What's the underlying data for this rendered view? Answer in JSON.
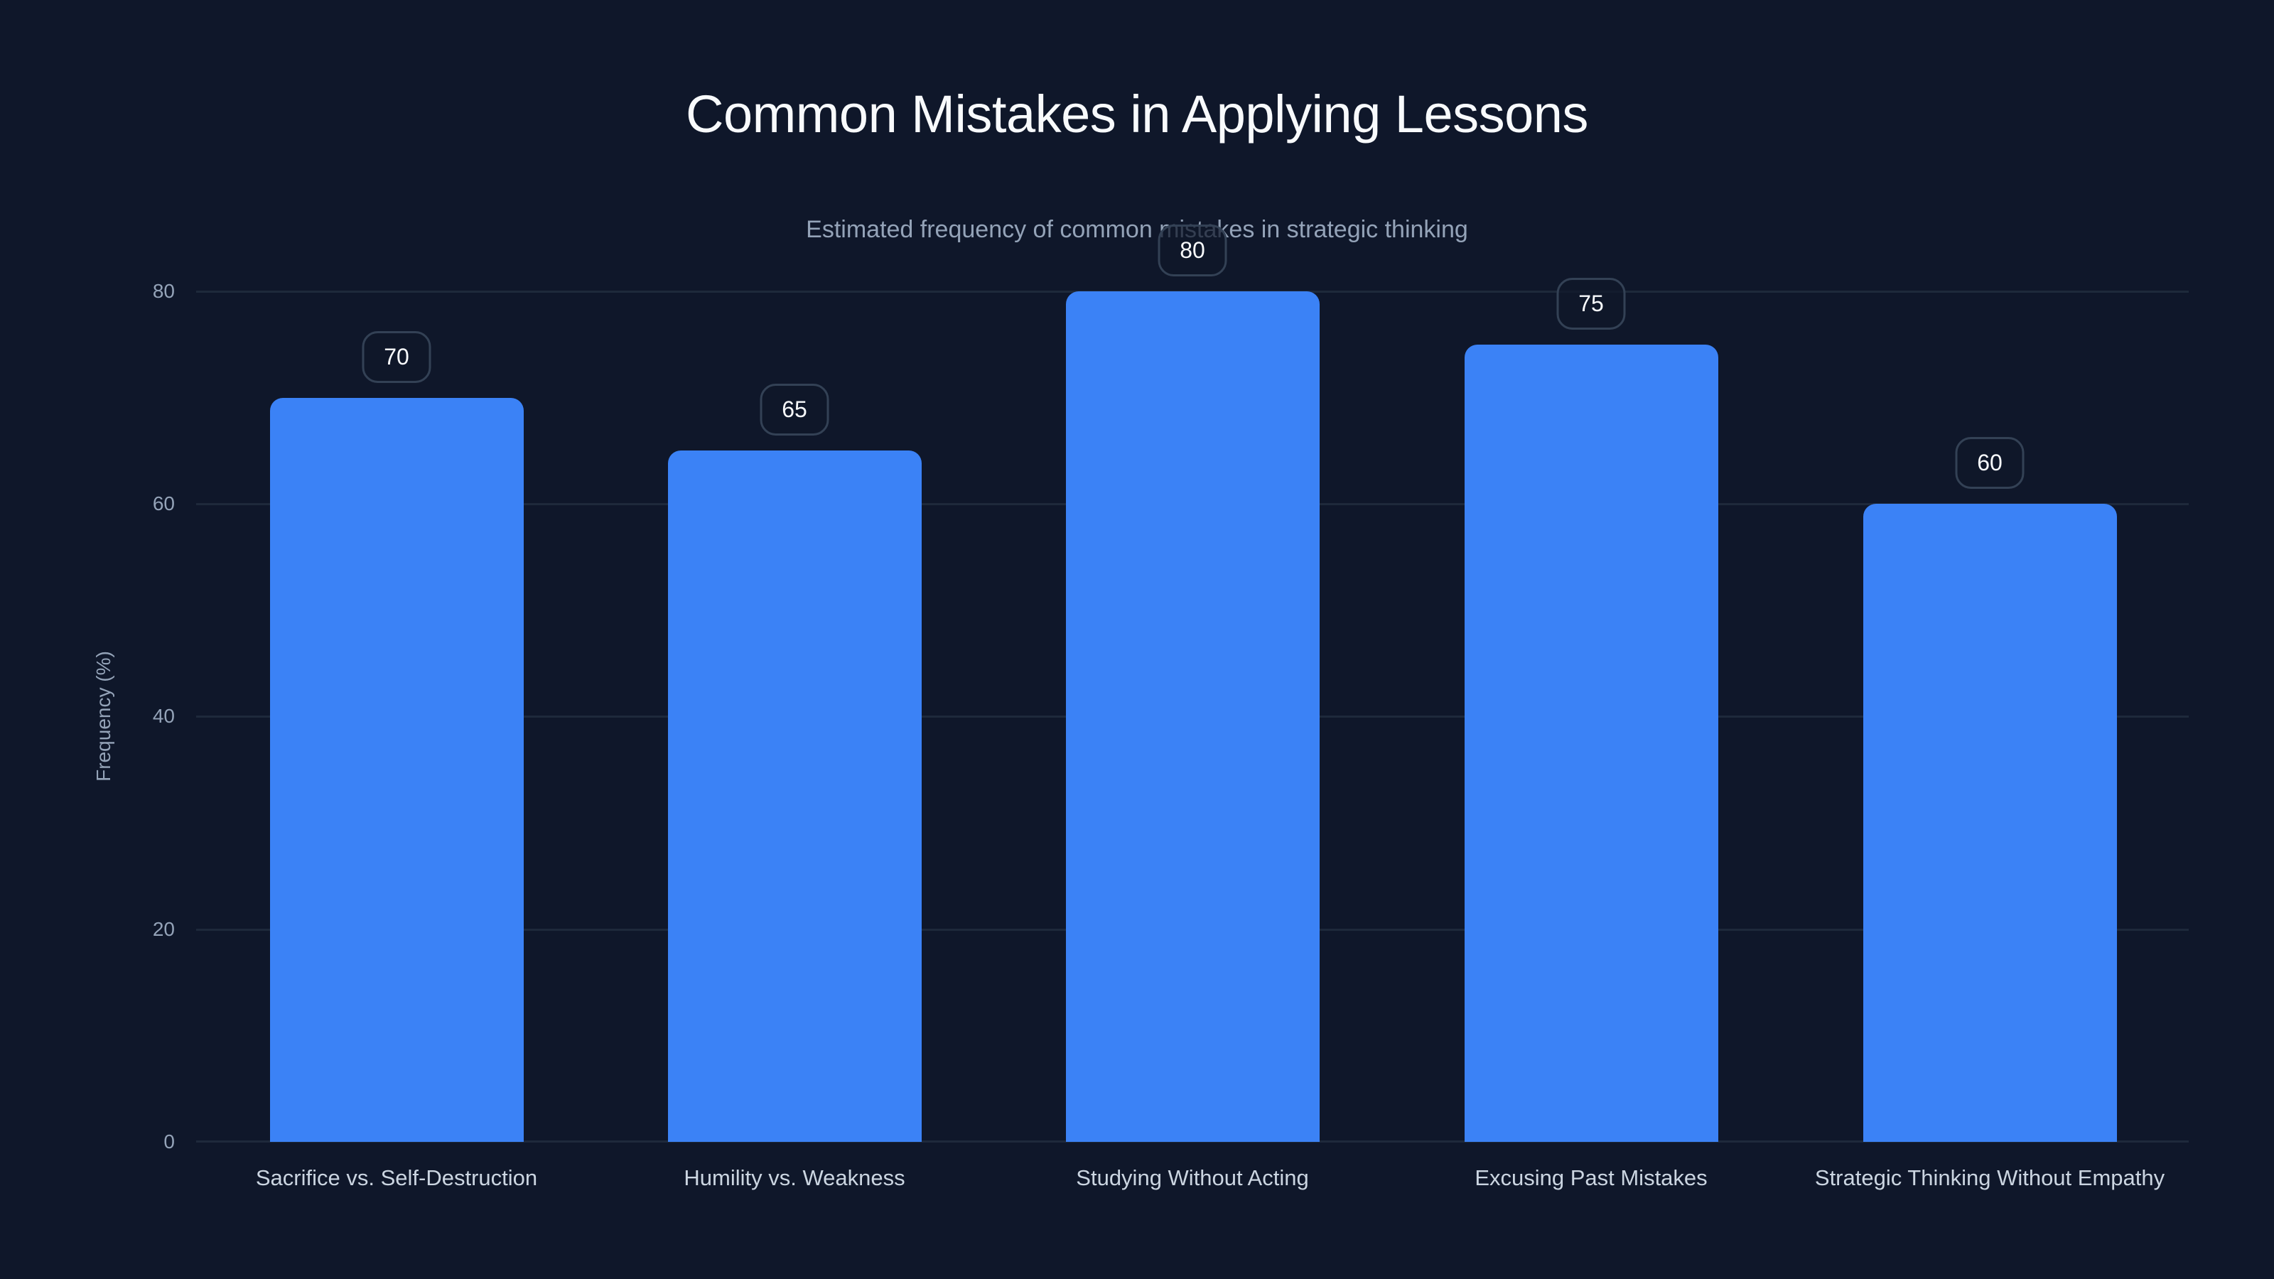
{
  "chart_data": {
    "type": "bar",
    "title": "Common Mistakes in Applying Lessons",
    "subtitle": "Estimated frequency of common mistakes in strategic thinking",
    "categories": [
      "Sacrifice vs. Self-Destruction",
      "Humility vs. Weakness",
      "Studying Without Acting",
      "Excusing Past Mistakes",
      "Strategic Thinking Without Empathy"
    ],
    "values": [
      70,
      65,
      80,
      75,
      60
    ],
    "data_labels": [
      "70",
      "65",
      "80",
      "75",
      "60"
    ],
    "xlabel": "",
    "ylabel": "Frequency (%)",
    "ylim": [
      0,
      80
    ],
    "yticks": [
      "0",
      "20",
      "40",
      "60",
      "80"
    ],
    "grid": true,
    "legend": null,
    "colors": {
      "background": "#0f172a",
      "bar": "#3b82f6",
      "grid": "#1e293b",
      "title": "#f8fafc",
      "muted_text": "#94a3b8",
      "label_border": "#334155"
    }
  }
}
